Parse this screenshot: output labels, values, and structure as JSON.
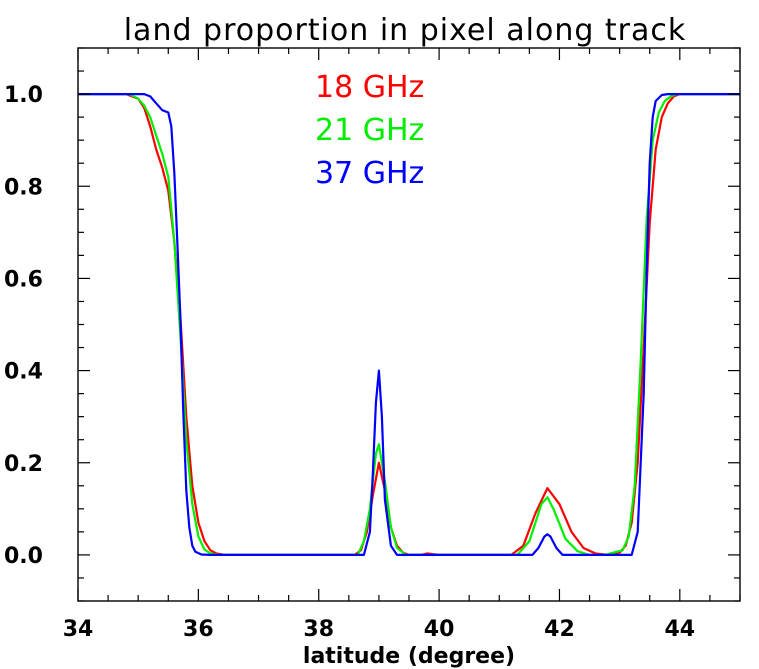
{
  "chart_data": {
    "type": "line",
    "title": "land proportion in pixel along track",
    "xlabel": "latitude (degree)",
    "ylabel": "",
    "xlim": [
      34,
      45
    ],
    "ylim": [
      -0.1,
      1.1
    ],
    "x_ticks": [
      "34",
      "36",
      "38",
      "40",
      "42",
      "44"
    ],
    "y_ticks": [
      "0.0",
      "0.2",
      "0.4",
      "0.6",
      "0.8",
      "1.0"
    ],
    "legend_placement": "top-center",
    "grid": false,
    "series": [
      {
        "name": "18 GHz",
        "color": "#ff0000",
        "x": [
          34,
          34.8,
          35,
          35.1,
          35.2,
          35.3,
          35.4,
          35.5,
          35.6,
          35.7,
          35.8,
          35.9,
          36.0,
          36.1,
          36.2,
          36.3,
          36.45,
          38.6,
          38.7,
          38.8,
          38.9,
          39.0,
          39.1,
          39.2,
          39.3,
          39.4,
          39.5,
          39.7,
          39.8,
          40.0,
          41.2,
          41.4,
          41.6,
          41.8,
          42.0,
          42.2,
          42.4,
          42.6,
          42.8,
          43.0,
          43.1,
          43.2,
          43.3,
          43.4,
          43.5,
          43.6,
          43.7,
          43.8,
          43.9,
          44.0,
          45
        ],
        "y": [
          1.0,
          1.0,
          0.99,
          0.97,
          0.93,
          0.88,
          0.84,
          0.79,
          0.68,
          0.52,
          0.3,
          0.15,
          0.07,
          0.03,
          0.01,
          0.003,
          0.0,
          0.0,
          0.01,
          0.05,
          0.13,
          0.2,
          0.14,
          0.06,
          0.02,
          0.005,
          0.0,
          0.0,
          0.003,
          0.0,
          0.0,
          0.02,
          0.09,
          0.145,
          0.11,
          0.05,
          0.015,
          0.003,
          0.0,
          0.005,
          0.02,
          0.07,
          0.2,
          0.45,
          0.72,
          0.88,
          0.95,
          0.98,
          0.995,
          1.0,
          1.0
        ]
      },
      {
        "name": "21 GHz",
        "color": "#00ee00",
        "x": [
          34,
          34.85,
          35,
          35.1,
          35.2,
          35.3,
          35.4,
          35.5,
          35.6,
          35.7,
          35.8,
          35.9,
          36.0,
          36.1,
          36.2,
          36.35,
          38.65,
          38.75,
          38.85,
          38.95,
          39.0,
          39.1,
          39.2,
          39.3,
          39.45,
          41.3,
          41.5,
          41.7,
          41.8,
          41.9,
          42.1,
          42.3,
          42.5,
          42.75,
          43.05,
          43.15,
          43.25,
          43.35,
          43.45,
          43.55,
          43.65,
          43.75,
          43.85,
          43.95,
          45
        ],
        "y": [
          1.0,
          1.0,
          0.99,
          0.975,
          0.95,
          0.91,
          0.87,
          0.82,
          0.68,
          0.48,
          0.25,
          0.11,
          0.04,
          0.012,
          0.003,
          0.0,
          0.0,
          0.03,
          0.1,
          0.22,
          0.24,
          0.16,
          0.06,
          0.015,
          0.0,
          0.0,
          0.03,
          0.11,
          0.125,
          0.1,
          0.035,
          0.008,
          0.0,
          0.0,
          0.01,
          0.04,
          0.15,
          0.42,
          0.73,
          0.9,
          0.96,
          0.985,
          0.995,
          1.0,
          1.0
        ]
      },
      {
        "name": "37 GHz",
        "color": "#0000ff",
        "x": [
          34,
          35.1,
          35.2,
          35.3,
          35.4,
          35.5,
          35.55,
          35.6,
          35.65,
          35.7,
          35.75,
          35.8,
          35.85,
          35.9,
          35.95,
          36.05,
          36.2,
          38.75,
          38.85,
          38.9,
          38.95,
          39.0,
          39.05,
          39.1,
          39.2,
          39.3,
          41.55,
          41.65,
          41.75,
          41.8,
          41.85,
          41.95,
          42.05,
          43.2,
          43.3,
          43.4,
          43.45,
          43.5,
          43.55,
          43.6,
          43.7,
          43.8,
          45
        ],
        "y": [
          1.0,
          1.0,
          0.995,
          0.98,
          0.965,
          0.96,
          0.93,
          0.83,
          0.68,
          0.52,
          0.31,
          0.14,
          0.06,
          0.02,
          0.007,
          0.001,
          0.0,
          0.0,
          0.05,
          0.18,
          0.33,
          0.4,
          0.3,
          0.12,
          0.02,
          0.0,
          0.0,
          0.015,
          0.04,
          0.045,
          0.04,
          0.015,
          0.0,
          0.0,
          0.05,
          0.35,
          0.62,
          0.85,
          0.95,
          0.985,
          0.998,
          1.0,
          1.0
        ]
      }
    ]
  }
}
